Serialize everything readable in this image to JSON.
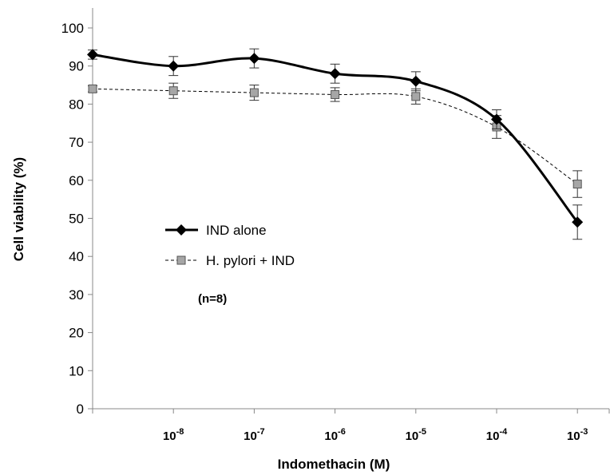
{
  "chart_data": {
    "type": "line",
    "xlabel": "Indomethacin  (M)",
    "ylabel": "Cell viability  (%)",
    "ylim": [
      0,
      100
    ],
    "y_ticks": [
      "0",
      "10",
      "20",
      "30",
      "40",
      "50",
      "60",
      "70",
      "80",
      "90",
      "100"
    ],
    "x_tick_labels": [
      {
        "base": "",
        "exp": ""
      },
      {
        "base": "10",
        "exp": "-8"
      },
      {
        "base": "10",
        "exp": "-7"
      },
      {
        "base": "10",
        "exp": "-6"
      },
      {
        "base": "10",
        "exp": "-5"
      },
      {
        "base": "10",
        "exp": "-4"
      },
      {
        "base": "10",
        "exp": "-3"
      }
    ],
    "grid": false,
    "legend_position": "middle-left",
    "series": [
      {
        "name": "IND alone",
        "marker": "diamond",
        "line": "solid",
        "color": "#000000",
        "values": [
          93,
          90,
          92,
          88,
          86,
          76,
          49
        ],
        "errors": [
          1.2,
          2.5,
          2.5,
          2.5,
          2.5,
          2.5,
          4.5
        ]
      },
      {
        "name": "H. pylori + IND",
        "marker": "square",
        "line": "dashed",
        "color": "#a6a6a6",
        "values": [
          84,
          83.5,
          83,
          82.5,
          82,
          74,
          59
        ],
        "errors": [
          0.8,
          2,
          2,
          1.8,
          2,
          3,
          3.5
        ]
      }
    ],
    "annotation": "(n=8)"
  }
}
